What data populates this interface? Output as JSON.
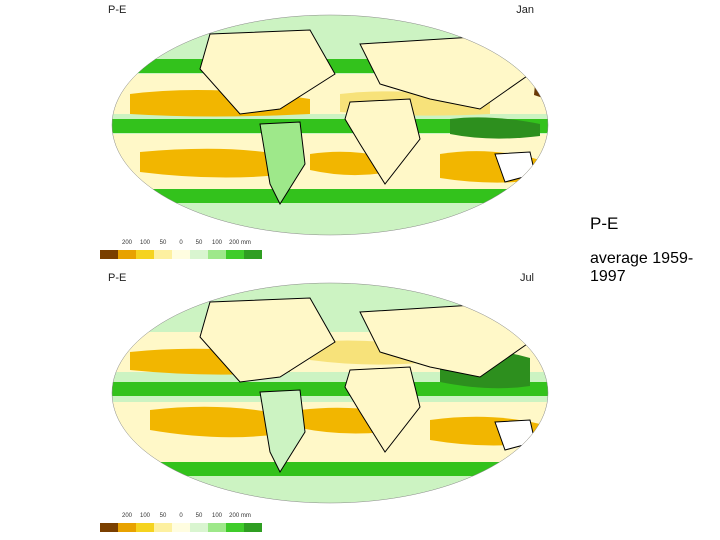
{
  "maps": [
    {
      "id": "jan",
      "variable_label": "P-E",
      "month_label": "Jan"
    },
    {
      "id": "jul",
      "variable_label": "P-E",
      "month_label": "Jul"
    }
  ],
  "legend": {
    "ticks": [
      "200",
      "100",
      "50",
      "0",
      "50",
      "100",
      "200 mm"
    ],
    "colors": [
      "#7a3f00",
      "#e8a200",
      "#f5d31f",
      "#fdf0a0",
      "#fffde0",
      "#d9f5d0",
      "#9ee88a",
      "#3fcc2a",
      "#2f9e22"
    ]
  },
  "side_text": {
    "title": "P-E",
    "subtitle": "average 1959-1997"
  },
  "colors": {
    "ocean_base": "#ccf3c2",
    "dry": "#f2b600",
    "mild_dry": "#f7e27a",
    "neutral": "#fff8c8",
    "wet": "#33c21c",
    "very_wet": "#2d8f1e",
    "extreme_dry": "#6b3a06"
  }
}
